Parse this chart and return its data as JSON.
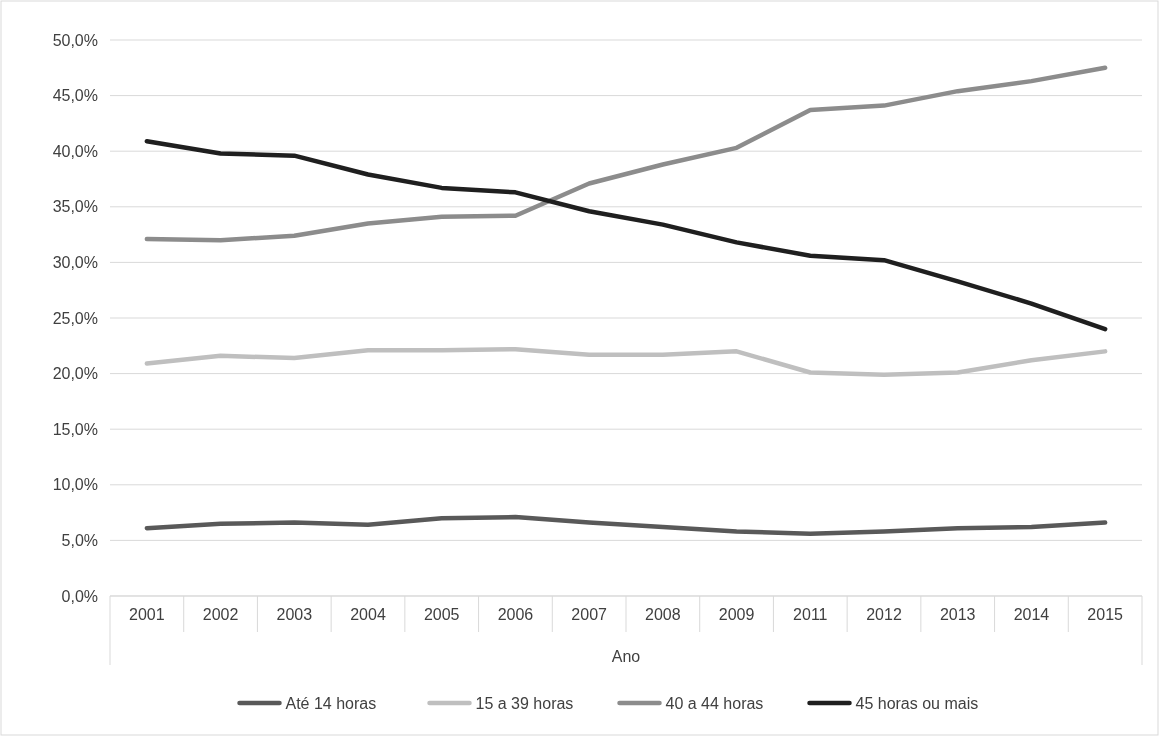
{
  "chart_data": {
    "type": "line",
    "xlabel": "Ano",
    "categories": [
      "2001",
      "2002",
      "2003",
      "2004",
      "2005",
      "2006",
      "2007",
      "2008",
      "2009",
      "2011",
      "2012",
      "2013",
      "2014",
      "2015"
    ],
    "series": [
      {
        "name": "Até 14 horas",
        "color": "#595959",
        "values": [
          6.1,
          6.5,
          6.6,
          6.4,
          7.0,
          7.1,
          6.6,
          6.2,
          5.8,
          5.6,
          5.8,
          6.1,
          6.2,
          6.6
        ]
      },
      {
        "name": "15 a 39 horas",
        "color": "#bfbfbf",
        "values": [
          20.9,
          21.6,
          21.4,
          22.1,
          22.1,
          22.2,
          21.7,
          21.7,
          22.0,
          20.1,
          19.9,
          20.1,
          21.2,
          22.0
        ]
      },
      {
        "name": "40 a 44 horas",
        "color": "#8c8c8c",
        "values": [
          32.1,
          32.0,
          32.4,
          33.5,
          34.1,
          34.2,
          37.1,
          38.8,
          40.3,
          43.7,
          44.1,
          45.4,
          46.3,
          47.5
        ]
      },
      {
        "name": "45 horas ou mais",
        "color": "#1f1f1f",
        "values": [
          40.9,
          39.8,
          39.6,
          37.9,
          36.7,
          36.3,
          34.6,
          33.4,
          31.8,
          30.6,
          30.2,
          28.3,
          26.3,
          24.0
        ]
      }
    ],
    "ylim": [
      0,
      50
    ],
    "yticks": [
      {
        "value": 0,
        "label": "0,0%"
      },
      {
        "value": 5,
        "label": "5,0%"
      },
      {
        "value": 10,
        "label": "10,0%"
      },
      {
        "value": 15,
        "label": "15,0%"
      },
      {
        "value": 20,
        "label": "20,0%"
      },
      {
        "value": 25,
        "label": "25,0%"
      },
      {
        "value": 30,
        "label": "30,0%"
      },
      {
        "value": 35,
        "label": "35,0%"
      },
      {
        "value": 40,
        "label": "40,0%"
      },
      {
        "value": 45,
        "label": "45,0%"
      },
      {
        "value": 50,
        "label": "50,0%"
      }
    ],
    "grid": "y",
    "legend": "bottom",
    "marker": "none",
    "line_style": "solid"
  }
}
